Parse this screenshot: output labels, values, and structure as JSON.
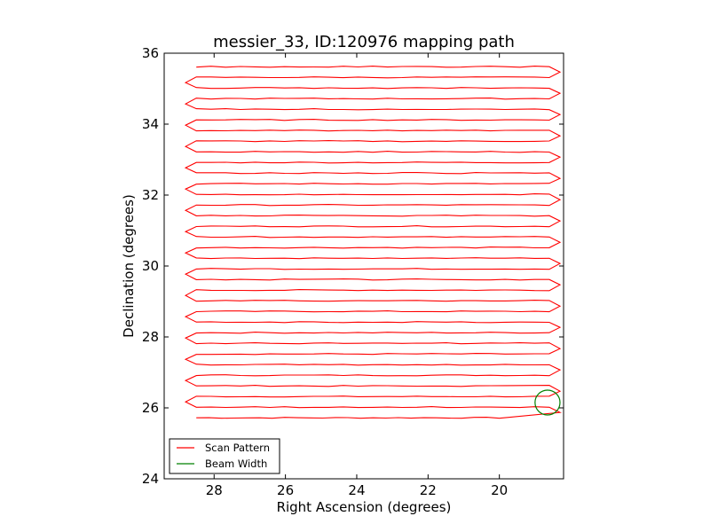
{
  "chart_data": {
    "type": "line",
    "title": "messier_33, ID:120976 mapping path",
    "xlabel": "Right Ascension (degrees)",
    "ylabel": "Declination (degrees)",
    "xlim": [
      29.4,
      18.2
    ],
    "ylim": [
      24,
      36
    ],
    "xticks": [
      28,
      26,
      24,
      22,
      20
    ],
    "yticks": [
      24,
      26,
      28,
      30,
      32,
      34,
      36
    ],
    "xticklabels": [
      "28",
      "26",
      "24",
      "22",
      "20"
    ],
    "yticklabels": [
      "24",
      "26",
      "28",
      "30",
      "32",
      "34",
      "36"
    ],
    "grid": false,
    "legend_position": "lower-left",
    "series": [
      {
        "name": "Scan Pattern",
        "color": "#ff0000",
        "scan": {
          "ra_left": 28.5,
          "ra_right": 18.6,
          "ra_left_overshoot": 28.8,
          "ra_right_overshoot": 18.3,
          "dec_start": 25.72,
          "dec_end": 35.62,
          "row_count": 34,
          "final_row_end_ra": 20.0
        }
      },
      {
        "name": "Beam Width",
        "color": "#008000",
        "circle": {
          "ra_center": 18.65,
          "dec_center": 26.15,
          "radius_deg": 0.35
        }
      }
    ]
  }
}
